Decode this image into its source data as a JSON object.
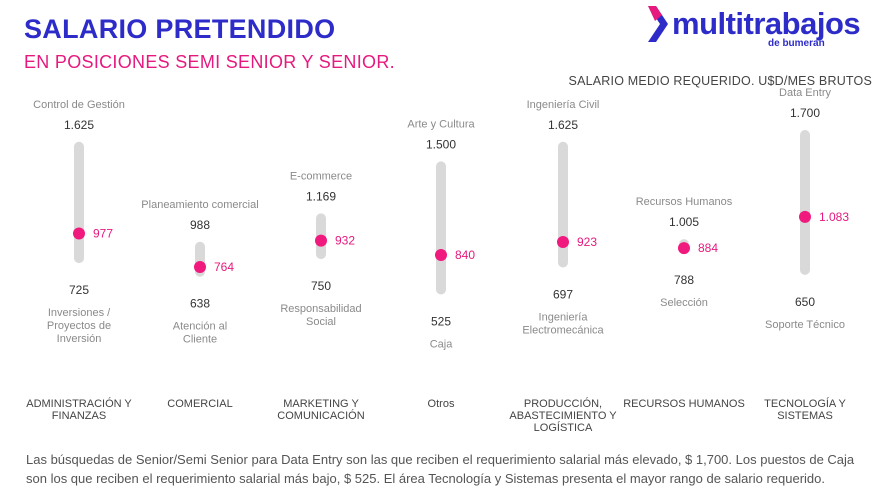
{
  "header": {
    "title": "SALARIO PRETENDIDO",
    "subtitle": "EN POSICIONES SEMI SENIOR Y SENIOR.",
    "logo_text": "multitrabajos",
    "logo_sub": "de bumeran"
  },
  "chart_caption": "SALARIO MEDIO REQUERIDO. U$D/MES BRUTOS",
  "chart_data": {
    "type": "range",
    "title": "SALARIO MEDIO REQUERIDO. U$D/MES BRUTOS",
    "categories": [
      "ADMINISTRACIÓN Y FINANZAS",
      "COMERCIAL",
      "MARKETING Y COMUNICACIÓN",
      "Otros",
      "PRODUCCIÓN, ABASTECIMIENTO Y LOGÍSTICA",
      "RECURSOS HUMANOS",
      "TECNOLOGÍA Y SISTEMAS"
    ],
    "series": [
      {
        "category": "ADMINISTRACIÓN Y FINANZAS",
        "max": 1625,
        "max_label": "1.625",
        "max_role": "Control de Gestión",
        "min": 725,
        "min_label": "725",
        "min_role": "Inversiones / Proyectos de Inversión",
        "mean": 977,
        "mean_label": "977"
      },
      {
        "category": "COMERCIAL",
        "max": 988,
        "max_label": "988",
        "max_role": "Planeamiento comercial",
        "min": 638,
        "min_label": "638",
        "min_role": "Atención al Cliente",
        "mean": 764,
        "mean_label": "764"
      },
      {
        "category": "MARKETING Y COMUNICACIÓN",
        "max": 1169,
        "max_label": "1.169",
        "max_role": "E-commerce",
        "min": 750,
        "min_label": "750",
        "min_role": "Responsabilidad Social",
        "mean": 932,
        "mean_label": "932"
      },
      {
        "category": "Otros",
        "max": 1500,
        "max_label": "1.500",
        "max_role": "Arte y Cultura",
        "min": 525,
        "min_label": "525",
        "min_role": "Caja",
        "mean": 840,
        "mean_label": "840"
      },
      {
        "category": "PRODUCCIÓN, ABASTECIMIENTO Y LOGÍSTICA",
        "max": 1625,
        "max_label": "1.625",
        "max_role": "Ingeniería Civil",
        "min": 697,
        "min_label": "697",
        "min_role": "Ingeniería Electromecánica",
        "mean": 923,
        "mean_label": "923"
      },
      {
        "category": "RECURSOS HUMANOS",
        "max": 1005,
        "max_label": "1.005",
        "max_role": "Recursos Humanos",
        "min": 788,
        "min_label": "788",
        "min_role": "Selección",
        "mean": 884,
        "mean_label": "884"
      },
      {
        "category": "TECNOLOGÍA Y SISTEMAS",
        "max": 1700,
        "max_label": "1.700",
        "max_role": "Data Entry",
        "min": 650,
        "min_label": "650",
        "min_role": "Soporte Técnico",
        "mean": 1083,
        "mean_label": "1.083"
      }
    ],
    "colors": {
      "bar": "#d9d9d9",
      "mean_dot": "#f0197e",
      "mean_label": "#e6197e",
      "value_label": "#333333",
      "role_label": "#8a8a8a",
      "category_label": "#444444"
    }
  },
  "footnote": "Las búsquedas de Senior/Semi Senior para Data Entry son las que reciben el requerimiento salarial más elevado, $ 1,700. Los puestos de Caja son los que reciben el requerimiento salarial más bajo, $ 525.  El área Tecnología y Sistemas presenta el mayor rango de salario requerido."
}
